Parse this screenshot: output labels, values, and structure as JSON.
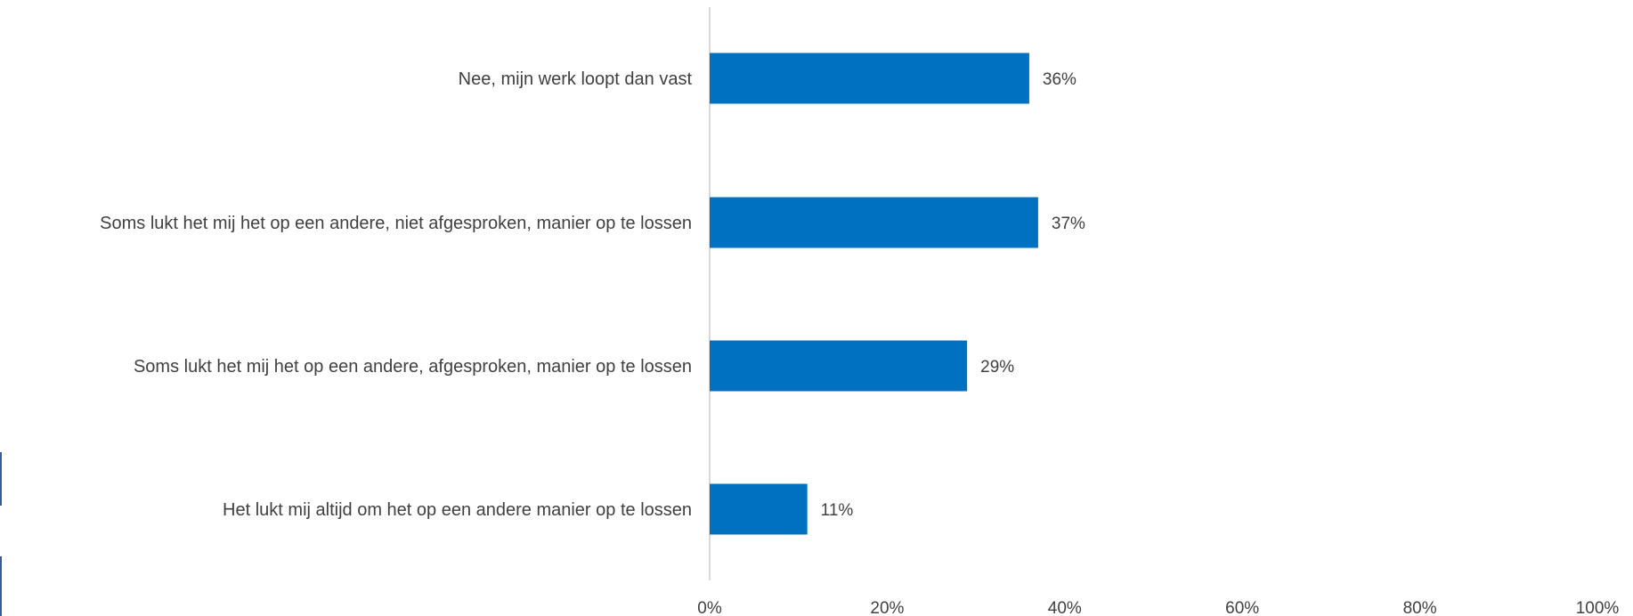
{
  "chart_data": {
    "type": "bar",
    "orientation": "horizontal",
    "categories": [
      "Nee, mijn werk loopt dan vast",
      "Soms lukt het mij het op een andere, niet afgesproken, manier op te lossen",
      "Soms lukt het mij het op een andere, afgesproken, manier op te lossen",
      "Het lukt mij altijd om het op een andere manier op te lossen"
    ],
    "values": [
      36,
      37,
      29,
      11
    ],
    "data_labels": [
      "36%",
      "37%",
      "29%",
      "11%"
    ],
    "xlim": [
      0,
      100
    ],
    "x_ticks": [
      "0%",
      "20%",
      "40%",
      "60%",
      "80%",
      "100%"
    ],
    "title": "",
    "xlabel": "",
    "ylabel": "",
    "grid": false,
    "legend": "none",
    "bar_color": "#0070C0",
    "axis_color": "#d9d9d9"
  }
}
